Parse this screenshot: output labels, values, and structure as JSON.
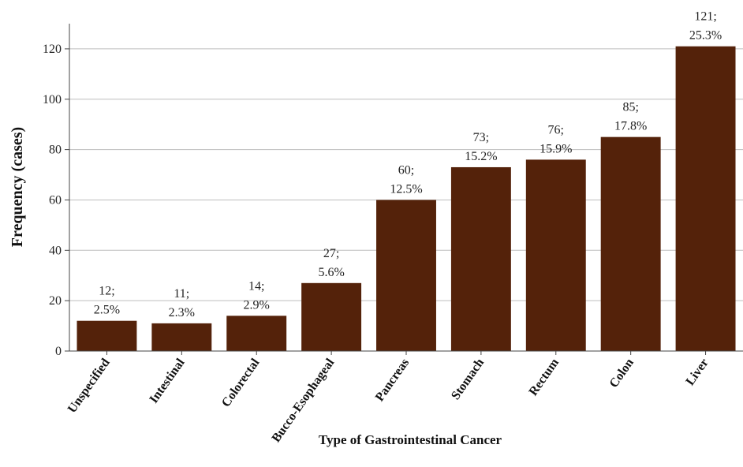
{
  "chart_data": {
    "type": "bar",
    "title": "",
    "xlabel": "Type of Gastrointestinal Cancer",
    "ylabel": "Frequency (cases)",
    "ylim": [
      0,
      130
    ],
    "yticks": [
      0,
      20,
      40,
      60,
      80,
      100,
      120
    ],
    "grid": true,
    "bar_color": "#54220a",
    "categories": [
      "Unspecified",
      "Intestinal",
      "Colorectal",
      "Bucco-Esophageal",
      "Pancreas",
      "Stomach",
      "Rectum",
      "Colon",
      "Liver"
    ],
    "values": [
      12,
      11,
      14,
      27,
      60,
      73,
      76,
      85,
      121
    ],
    "labels": [
      {
        "count": "12;",
        "percent": "2.5%"
      },
      {
        "count": "11;",
        "percent": "2.3%"
      },
      {
        "count": "14;",
        "percent": "2.9%"
      },
      {
        "count": "27;",
        "percent": "5.6%"
      },
      {
        "count": "60;",
        "percent": "12.5%"
      },
      {
        "count": "73;",
        "percent": "15.2%"
      },
      {
        "count": "76;",
        "percent": "15.9%"
      },
      {
        "count": "85;",
        "percent": "17.8%"
      },
      {
        "count": "121;",
        "percent": "25.3%"
      }
    ]
  }
}
